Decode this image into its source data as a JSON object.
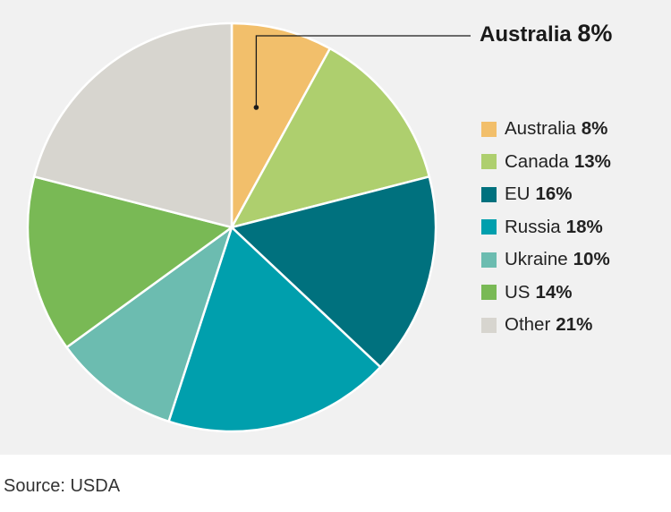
{
  "chart_data": {
    "type": "pie",
    "title": "",
    "slices": [
      {
        "label": "Australia",
        "pct_label": "8%",
        "value": 8,
        "color": "#f2bf6b"
      },
      {
        "label": "Canada",
        "pct_label": "13%",
        "value": 13,
        "color": "#aecf6e"
      },
      {
        "label": "EU",
        "pct_label": "16%",
        "value": 16,
        "color": "#00717e"
      },
      {
        "label": "Russia",
        "pct_label": "18%",
        "value": 18,
        "color": "#009fad"
      },
      {
        "label": "Ukraine",
        "pct_label": "10%",
        "value": 10,
        "color": "#6cbcb0"
      },
      {
        "label": "US",
        "pct_label": "14%",
        "value": 14,
        "color": "#79b955"
      },
      {
        "label": "Other",
        "pct_label": "21%",
        "value": 21,
        "color": "#d7d5cf"
      }
    ],
    "legend_position": "right",
    "callout": {
      "label": "Australia",
      "pct_label": "8%"
    }
  },
  "source": "Source: USDA"
}
